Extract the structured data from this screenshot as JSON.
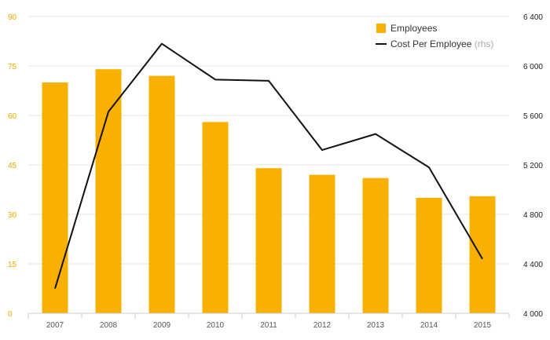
{
  "chart_data": {
    "type": "bar",
    "categories": [
      "2007",
      "2008",
      "2009",
      "2010",
      "2011",
      "2012",
      "2013",
      "2014",
      "2015"
    ],
    "series": [
      {
        "name": "Employees",
        "type": "bar",
        "axis": "left",
        "color": "#f9b000",
        "values": [
          70,
          74,
          72,
          58,
          44,
          42,
          41,
          35,
          35.5
        ]
      },
      {
        "name": "Cost Per Employee",
        "type": "line",
        "axis": "right",
        "color": "#111111",
        "values": [
          4200,
          5630,
          6180,
          5890,
          5880,
          5320,
          5450,
          5180,
          4440
        ]
      }
    ],
    "left_axis": {
      "min": 0,
      "max": 90,
      "ticks": [
        "0",
        "15",
        "30",
        "45",
        "60",
        "75",
        "90"
      ],
      "color": "#f5a800"
    },
    "right_axis": {
      "min": 4000,
      "max": 6400,
      "ticks": [
        "4 000",
        "4 400",
        "4 800",
        "5 200",
        "5 600",
        "6 000",
        "6 400"
      ]
    },
    "title": "",
    "xlabel": "",
    "ylabel": "",
    "grid": true,
    "legend": {
      "placement": "top-right",
      "items": [
        {
          "label": "Employees",
          "note": "",
          "symbol": "square",
          "color": "#f9b000"
        },
        {
          "label": "Cost Per Employee",
          "note": "(rhs)",
          "symbol": "line",
          "color": "#111111"
        }
      ]
    }
  }
}
